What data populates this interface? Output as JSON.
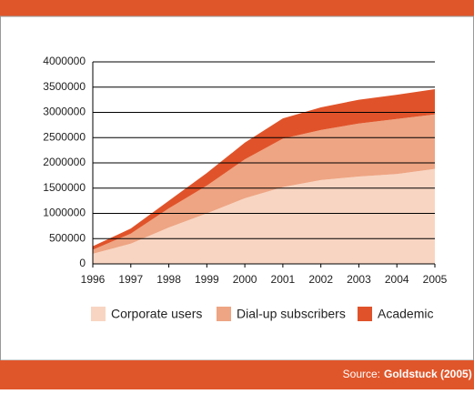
{
  "chart_data": {
    "type": "stacked_area",
    "categories": [
      "1996",
      "1997",
      "1998",
      "1999",
      "2000",
      "2001",
      "2002",
      "2003",
      "2004",
      "2005"
    ],
    "series": [
      {
        "name": "Corporate users",
        "color": "#f8d5c2",
        "values": [
          200000,
          400000,
          720000,
          1000000,
          1300000,
          1520000,
          1660000,
          1730000,
          1780000,
          1880000
        ]
      },
      {
        "name": "Dial-up subscribers",
        "color": "#eea583",
        "values": [
          80000,
          200000,
          380000,
          550000,
          770000,
          960000,
          990000,
          1050000,
          1090000,
          1080000
        ]
      },
      {
        "name": "Academic",
        "color": "#e0532a",
        "values": [
          70000,
          100000,
          150000,
          250000,
          330000,
          400000,
          450000,
          470000,
          480000,
          500000
        ]
      }
    ],
    "ylim": [
      0,
      4000000
    ],
    "yticks": [
      0,
      500000,
      1000000,
      1500000,
      2000000,
      2500000,
      3000000,
      3500000,
      4000000
    ],
    "grid": true
  },
  "footer": {
    "source_label": "Source:",
    "source": "Goldstuck (2005)"
  }
}
